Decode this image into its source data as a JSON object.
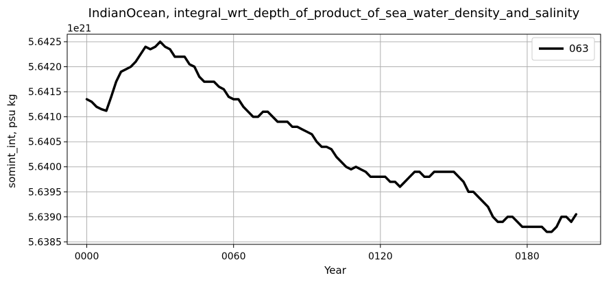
{
  "chart_data": {
    "type": "line",
    "title": "IndianOcean, integral_wrt_depth_of_product_of_sea_water_density_and_salinity",
    "xlabel": "Year",
    "ylabel": "somint_int, psu kg",
    "offset_label": "1e21",
    "y_multiplier": 1e+21,
    "xlim": [
      -8,
      210
    ],
    "ylim": [
      5.63845,
      5.64265
    ],
    "x_ticks": [
      0,
      60,
      120,
      180
    ],
    "x_tick_labels": [
      "0000",
      "0060",
      "0120",
      "0180"
    ],
    "y_ticks": [
      5.6385,
      5.639,
      5.6395,
      5.64,
      5.6405,
      5.641,
      5.6415,
      5.642,
      5.6425
    ],
    "y_tick_labels": [
      "5.6385",
      "5.6390",
      "5.6395",
      "5.6400",
      "5.6405",
      "5.6410",
      "5.6415",
      "5.6420",
      "5.6425"
    ],
    "grid": true,
    "legend_position": "top-right",
    "series": [
      {
        "name": "063",
        "color": "#000000",
        "x": [
          0,
          2,
          4,
          6,
          8,
          10,
          12,
          14,
          16,
          18,
          20,
          22,
          24,
          26,
          28,
          30,
          32,
          34,
          36,
          38,
          40,
          42,
          44,
          46,
          48,
          50,
          52,
          54,
          56,
          58,
          60,
          62,
          64,
          66,
          68,
          70,
          72,
          74,
          76,
          78,
          80,
          82,
          84,
          86,
          88,
          90,
          92,
          94,
          96,
          98,
          100,
          102,
          104,
          106,
          108,
          110,
          112,
          114,
          116,
          118,
          120,
          122,
          124,
          126,
          128,
          130,
          132,
          134,
          136,
          138,
          140,
          142,
          144,
          146,
          148,
          150,
          152,
          154,
          156,
          158,
          160,
          162,
          164,
          166,
          168,
          170,
          172,
          174,
          176,
          178,
          180,
          182,
          184,
          186,
          188,
          190,
          192,
          194,
          196,
          198,
          200
        ],
        "values": [
          5.64135,
          5.6413,
          5.6412,
          5.64115,
          5.64112,
          5.6414,
          5.6417,
          5.6419,
          5.64195,
          5.642,
          5.6421,
          5.64225,
          5.6424,
          5.64235,
          5.6424,
          5.6425,
          5.6424,
          5.64235,
          5.6422,
          5.6422,
          5.6422,
          5.64205,
          5.642,
          5.6418,
          5.6417,
          5.6417,
          5.6417,
          5.6416,
          5.64155,
          5.6414,
          5.64135,
          5.64135,
          5.6412,
          5.6411,
          5.641,
          5.641,
          5.6411,
          5.6411,
          5.641,
          5.6409,
          5.6409,
          5.6409,
          5.6408,
          5.6408,
          5.64075,
          5.6407,
          5.64065,
          5.6405,
          5.6404,
          5.6404,
          5.64035,
          5.6402,
          5.6401,
          5.64,
          5.63995,
          5.64,
          5.63995,
          5.6399,
          5.6398,
          5.6398,
          5.6398,
          5.6398,
          5.6397,
          5.6397,
          5.6396,
          5.6397,
          5.6398,
          5.6399,
          5.6399,
          5.6398,
          5.6398,
          5.6399,
          5.6399,
          5.6399,
          5.6399,
          5.6399,
          5.6398,
          5.6397,
          5.6395,
          5.6395,
          5.6394,
          5.6393,
          5.6392,
          5.639,
          5.6389,
          5.6389,
          5.639,
          5.639,
          5.6389,
          5.6388,
          5.6388,
          5.6388,
          5.6388,
          5.6388,
          5.6387,
          5.6387,
          5.6388,
          5.639,
          5.639,
          5.6389,
          5.63905
        ]
      }
    ]
  }
}
